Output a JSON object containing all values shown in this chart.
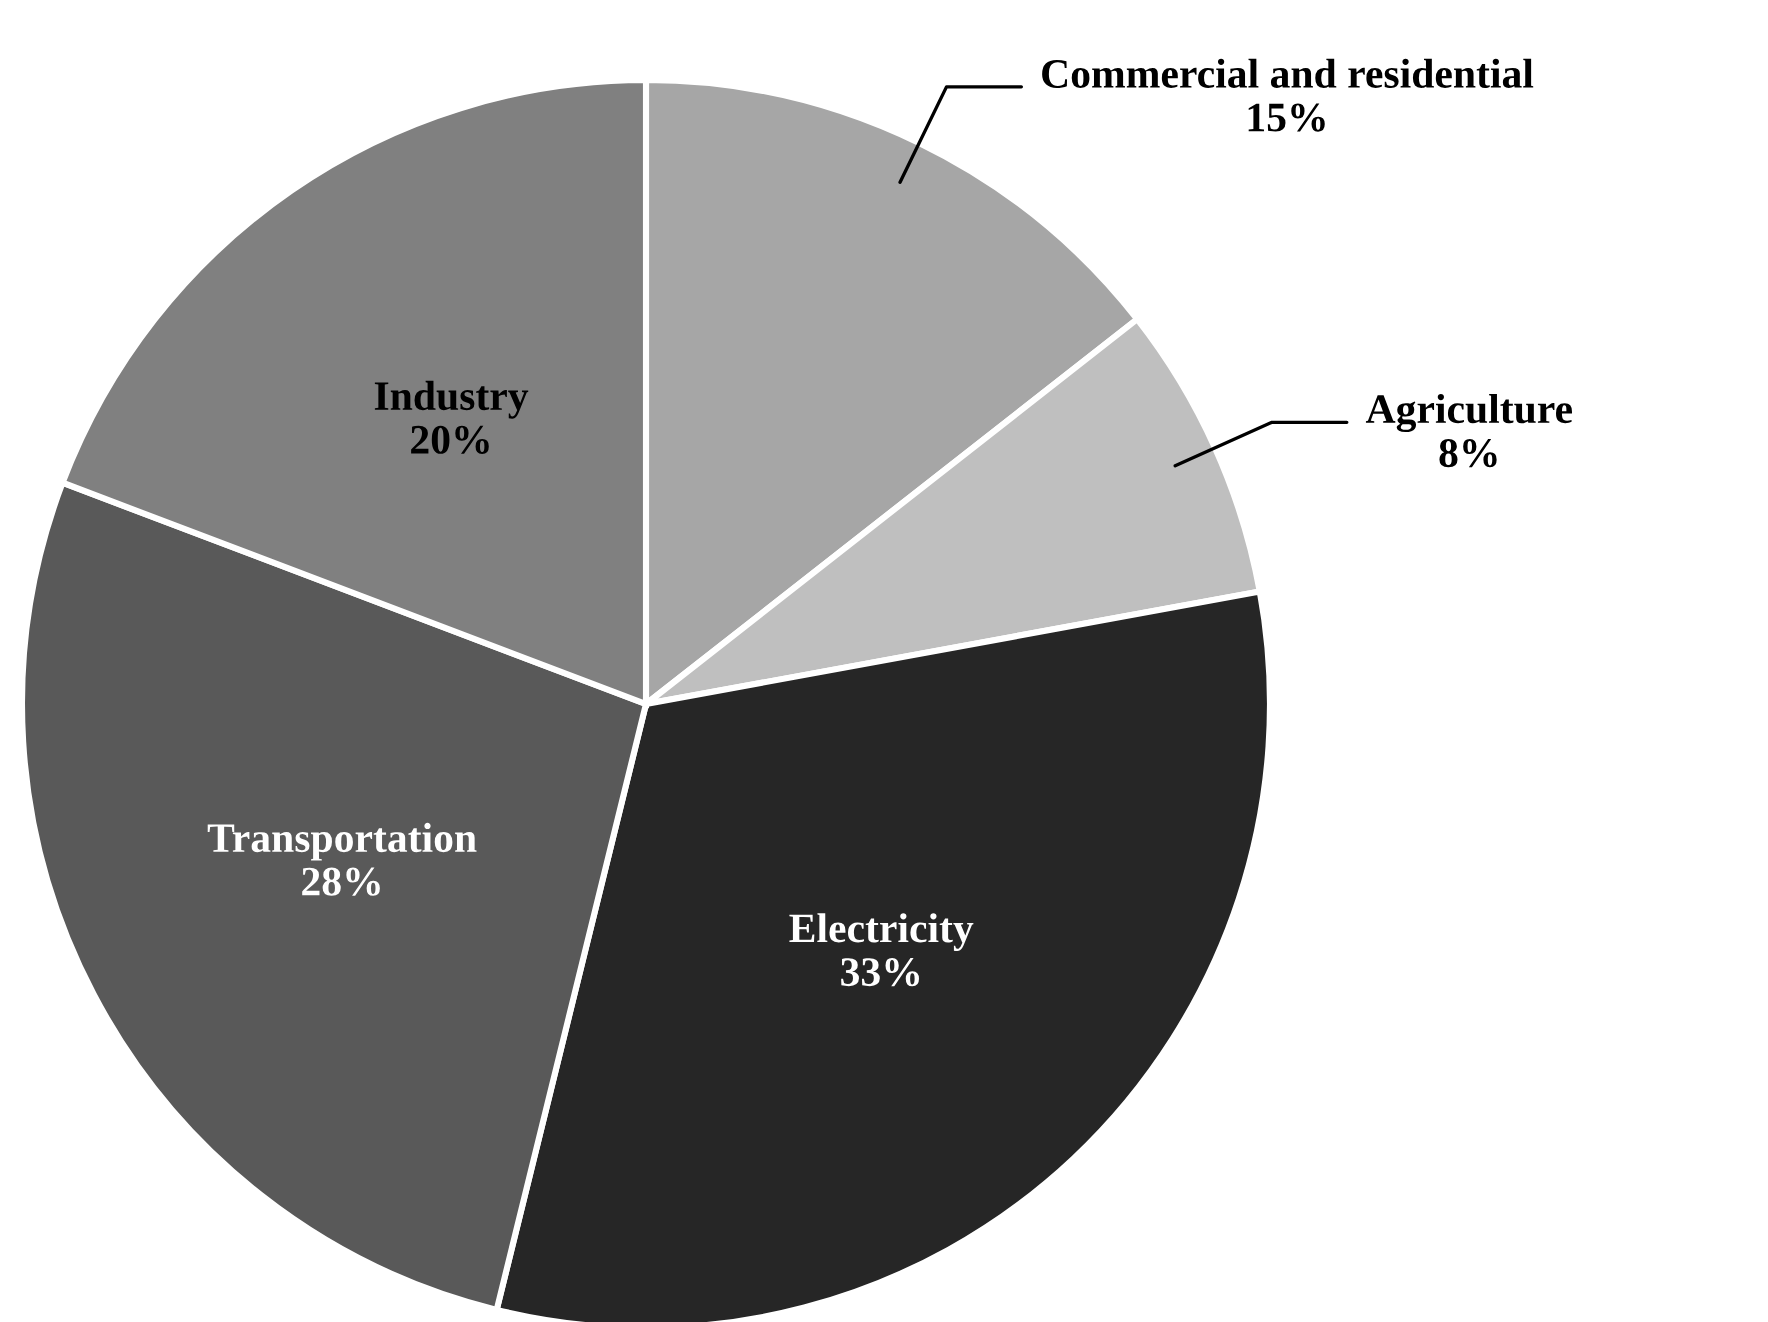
{
  "chart_data": {
    "type": "pie",
    "categories": [
      "Commercial and residential",
      "Agriculture",
      "Electricity",
      "Transportation",
      "Industry"
    ],
    "values": [
      15,
      8,
      33,
      28,
      20
    ],
    "value_labels": [
      "15%",
      "8%",
      "33%",
      "28%",
      "20%"
    ],
    "colors": [
      "#a6a6a6",
      "#bfbfbf",
      "#262626",
      "#595959",
      "#808080"
    ],
    "legend": false
  }
}
